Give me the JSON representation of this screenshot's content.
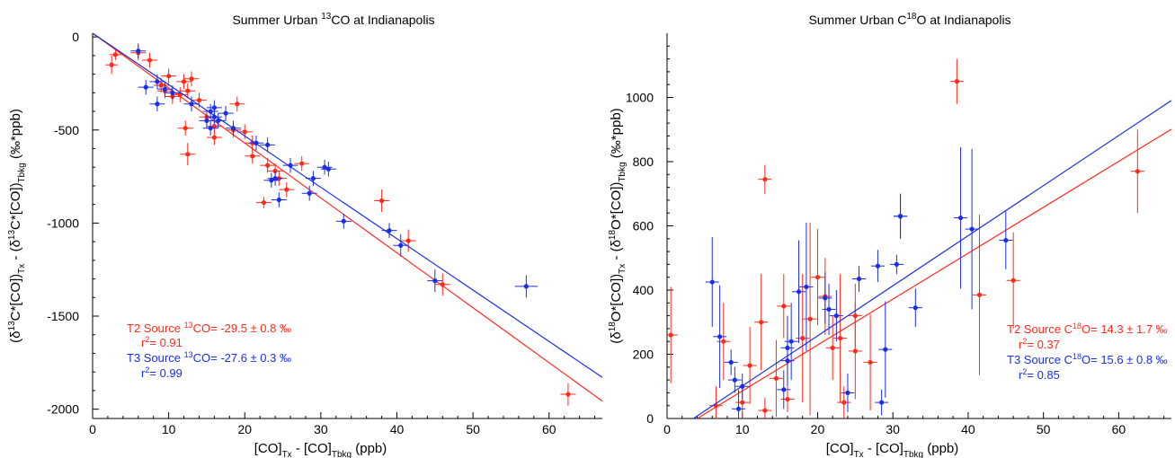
{
  "chart_data": [
    {
      "type": "scatter",
      "title": "Summer Urban <sup>13</sup>CO at Indianapolis",
      "xlabel": "[CO]<sub>Tx</sub> - [CO]<sub>Tbkg</sub> (ppb)",
      "ylabel": "(δ<sup>13</sup>C*[CO])<sub>Tx</sub> - (δ<sup>13</sup>C*[CO])<sub>Tbkg</sub> (‰*ppb)",
      "xlim": [
        0,
        67
      ],
      "ylim": [
        -2050,
        20
      ],
      "xticks": [
        0,
        10,
        20,
        30,
        40,
        50,
        60
      ],
      "yticks": [
        0,
        -500,
        -1000,
        -1500,
        -2000
      ],
      "colors": {
        "T2": "#ff2a1a",
        "T3": "#1a2ee6"
      },
      "series": [
        {
          "name": "T2",
          "color": "#ff2a1a",
          "fit": {
            "intercept": 20,
            "slope": -29.5,
            "x_end": 67
          },
          "points": [
            {
              "x": 2.5,
              "y": -150,
              "ex": 0.8,
              "ey": 50
            },
            {
              "x": 3.0,
              "y": -95,
              "ex": 0.8,
              "ey": 30
            },
            {
              "x": 6.0,
              "y": -85,
              "ex": 1.0,
              "ey": 40
            },
            {
              "x": 7.5,
              "y": -125,
              "ex": 1.0,
              "ey": 40
            },
            {
              "x": 9.0,
              "y": -260,
              "ex": 1.0,
              "ey": 40
            },
            {
              "x": 9.5,
              "y": -290,
              "ex": 1.0,
              "ey": 40
            },
            {
              "x": 10.0,
              "y": -210,
              "ex": 1.0,
              "ey": 40
            },
            {
              "x": 10.5,
              "y": -320,
              "ex": 1.0,
              "ey": 40
            },
            {
              "x": 11.5,
              "y": -310,
              "ex": 1.0,
              "ey": 40
            },
            {
              "x": 12.0,
              "y": -240,
              "ex": 1.0,
              "ey": 40
            },
            {
              "x": 12.5,
              "y": -290,
              "ex": 1.0,
              "ey": 40
            },
            {
              "x": 12.2,
              "y": -490,
              "ex": 1.0,
              "ey": 40
            },
            {
              "x": 12.5,
              "y": -630,
              "ex": 1.0,
              "ey": 60
            },
            {
              "x": 13.0,
              "y": -225,
              "ex": 1.0,
              "ey": 40
            },
            {
              "x": 14.0,
              "y": -340,
              "ex": 1.0,
              "ey": 40
            },
            {
              "x": 15.0,
              "y": -430,
              "ex": 1.0,
              "ey": 40
            },
            {
              "x": 16.0,
              "y": -480,
              "ex": 1.0,
              "ey": 40
            },
            {
              "x": 16.0,
              "y": -540,
              "ex": 1.0,
              "ey": 40
            },
            {
              "x": 18.5,
              "y": -500,
              "ex": 1.0,
              "ey": 40
            },
            {
              "x": 19.0,
              "y": -360,
              "ex": 1.0,
              "ey": 40
            },
            {
              "x": 20.0,
              "y": -510,
              "ex": 1.0,
              "ey": 40
            },
            {
              "x": 21.0,
              "y": -570,
              "ex": 1.0,
              "ey": 40
            },
            {
              "x": 21.0,
              "y": -640,
              "ex": 1.0,
              "ey": 40
            },
            {
              "x": 22.5,
              "y": -890,
              "ex": 1.0,
              "ey": 30
            },
            {
              "x": 23.0,
              "y": -690,
              "ex": 1.0,
              "ey": 40
            },
            {
              "x": 24.0,
              "y": -720,
              "ex": 1.0,
              "ey": 40
            },
            {
              "x": 24.5,
              "y": -760,
              "ex": 1.0,
              "ey": 40
            },
            {
              "x": 25.5,
              "y": -820,
              "ex": 1.0,
              "ey": 40
            },
            {
              "x": 27.5,
              "y": -680,
              "ex": 1.0,
              "ey": 40
            },
            {
              "x": 38.0,
              "y": -880,
              "ex": 1.0,
              "ey": 60
            },
            {
              "x": 41.5,
              "y": -1095,
              "ex": 1.0,
              "ey": 60
            },
            {
              "x": 46.0,
              "y": -1330,
              "ex": 1.0,
              "ey": 60
            },
            {
              "x": 62.5,
              "y": -1920,
              "ex": 1.0,
              "ey": 60
            }
          ]
        },
        {
          "name": "T3",
          "color": "#1a2ee6",
          "fit": {
            "intercept": 20,
            "slope": -27.6,
            "x_end": 67
          },
          "points": [
            {
              "x": 6.0,
              "y": -75,
              "ex": 1.0,
              "ey": 40
            },
            {
              "x": 7.0,
              "y": -270,
              "ex": 1.0,
              "ey": 40
            },
            {
              "x": 8.5,
              "y": -240,
              "ex": 1.0,
              "ey": 40
            },
            {
              "x": 8.5,
              "y": -360,
              "ex": 1.0,
              "ey": 40
            },
            {
              "x": 9.5,
              "y": -280,
              "ex": 1.0,
              "ey": 40
            },
            {
              "x": 10.5,
              "y": -300,
              "ex": 1.0,
              "ey": 40
            },
            {
              "x": 13.0,
              "y": -360,
              "ex": 1.0,
              "ey": 40
            },
            {
              "x": 15.0,
              "y": -450,
              "ex": 1.0,
              "ey": 40
            },
            {
              "x": 15.5,
              "y": -400,
              "ex": 1.0,
              "ey": 40
            },
            {
              "x": 15.5,
              "y": -490,
              "ex": 1.0,
              "ey": 40
            },
            {
              "x": 16.0,
              "y": -380,
              "ex": 1.0,
              "ey": 40
            },
            {
              "x": 16.0,
              "y": -430,
              "ex": 1.0,
              "ey": 40
            },
            {
              "x": 16.5,
              "y": -450,
              "ex": 1.0,
              "ey": 40
            },
            {
              "x": 17.5,
              "y": -410,
              "ex": 1.0,
              "ey": 40
            },
            {
              "x": 18.5,
              "y": -490,
              "ex": 1.0,
              "ey": 40
            },
            {
              "x": 21.5,
              "y": -570,
              "ex": 1.0,
              "ey": 40
            },
            {
              "x": 23.0,
              "y": -580,
              "ex": 1.0,
              "ey": 40
            },
            {
              "x": 23.5,
              "y": -770,
              "ex": 1.0,
              "ey": 40
            },
            {
              "x": 24.0,
              "y": -760,
              "ex": 1.0,
              "ey": 40
            },
            {
              "x": 24.5,
              "y": -875,
              "ex": 1.0,
              "ey": 40
            },
            {
              "x": 26.0,
              "y": -690,
              "ex": 1.0,
              "ey": 40
            },
            {
              "x": 28.5,
              "y": -840,
              "ex": 1.0,
              "ey": 40
            },
            {
              "x": 29.0,
              "y": -760,
              "ex": 1.0,
              "ey": 40
            },
            {
              "x": 30.5,
              "y": -700,
              "ex": 1.0,
              "ey": 40
            },
            {
              "x": 31.0,
              "y": -710,
              "ex": 1.0,
              "ey": 40
            },
            {
              "x": 33.0,
              "y": -990,
              "ex": 1.0,
              "ey": 40
            },
            {
              "x": 39.0,
              "y": -1040,
              "ex": 1.0,
              "ey": 40
            },
            {
              "x": 40.5,
              "y": -1120,
              "ex": 1.0,
              "ey": 60
            },
            {
              "x": 45.0,
              "y": -1310,
              "ex": 1.0,
              "ey": 60
            },
            {
              "x": 57.0,
              "y": -1340,
              "ex": 1.5,
              "ey": 60
            }
          ]
        }
      ],
      "annotations": {
        "t2_line1": "T2 Source <sup>13</sup>CO=  -29.5 ± 0.8 ‰",
        "t2_line2": "r<sup>2</sup>=  0.91",
        "t3_line1": "T3 Source <sup>13</sup>CO=  -27.6 ± 0.3 ‰",
        "t3_line2": "r<sup>2</sup>=  0.99"
      }
    },
    {
      "type": "scatter",
      "title": "Summer Urban C<sup>18</sup>O at Indianapolis",
      "xlabel": "[CO]<sub>Tx</sub> - [CO]<sub>Tbkg</sub> (ppb)",
      "ylabel": "(δ<sup>18</sup>O*[CO])<sub>Tx</sub> - (δ<sup>18</sup>O*[CO])<sub>Tbkg</sub> (‰*ppb)",
      "xlim": [
        0,
        67
      ],
      "ylim": [
        0,
        1200
      ],
      "xticks": [
        0,
        10,
        20,
        30,
        40,
        50,
        60
      ],
      "yticks": [
        0,
        200,
        400,
        600,
        800,
        1000
      ],
      "colors": {
        "T2": "#ff2a1a",
        "T3": "#1a2ee6"
      },
      "series": [
        {
          "name": "T2",
          "color": "#ff2a1a",
          "fit": {
            "x0": 4.0,
            "slope": 14.3,
            "x_end": 67
          },
          "points": [
            {
              "x": 0.5,
              "y": 260,
              "ey": 150
            },
            {
              "x": 6.5,
              "y": 40,
              "ey": 60
            },
            {
              "x": 7.5,
              "y": 240,
              "ey": 120
            },
            {
              "x": 10.0,
              "y": 50,
              "ey": 60
            },
            {
              "x": 11.0,
              "y": 165,
              "ey": 120
            },
            {
              "x": 12.5,
              "y": 300,
              "ey": 150
            },
            {
              "x": 13.0,
              "y": 745,
              "ey": 45
            },
            {
              "x": 13.0,
              "y": 25,
              "ey": 40
            },
            {
              "x": 14.5,
              "y": 125,
              "ey": 120
            },
            {
              "x": 15.5,
              "y": 350,
              "ey": 100
            },
            {
              "x": 16.0,
              "y": 60,
              "ey": 40
            },
            {
              "x": 18.0,
              "y": 250,
              "ey": 200
            },
            {
              "x": 19.0,
              "y": 310,
              "ey": 300
            },
            {
              "x": 20.0,
              "y": 440,
              "ey": 150
            },
            {
              "x": 21.0,
              "y": 380,
              "ey": 120
            },
            {
              "x": 22.0,
              "y": 220,
              "ey": 100
            },
            {
              "x": 23.0,
              "y": 250,
              "ey": 200
            },
            {
              "x": 23.5,
              "y": 50,
              "ey": 50
            },
            {
              "x": 25.0,
              "y": 210,
              "ey": 150
            },
            {
              "x": 25.0,
              "y": 320,
              "ey": 100
            },
            {
              "x": 27.0,
              "y": 175,
              "ey": 150
            },
            {
              "x": 38.5,
              "y": 1050,
              "ey": 70
            },
            {
              "x": 41.5,
              "y": 385,
              "ey": 250
            },
            {
              "x": 46.0,
              "y": 430,
              "ey": 150
            },
            {
              "x": 62.5,
              "y": 770,
              "ey": 130
            }
          ]
        },
        {
          "name": "T3",
          "color": "#1a2ee6",
          "fit": {
            "x0": 3.5,
            "slope": 15.6,
            "x_end": 67
          },
          "points": [
            {
              "x": 6.0,
              "y": 425,
              "ey": 140
            },
            {
              "x": 7.0,
              "y": 255,
              "ey": 160
            },
            {
              "x": 8.5,
              "y": 175,
              "ey": 40
            },
            {
              "x": 9.0,
              "y": 120,
              "ey": 40
            },
            {
              "x": 9.5,
              "y": 30,
              "ey": 60
            },
            {
              "x": 10.0,
              "y": 100,
              "ey": 40
            },
            {
              "x": 15.5,
              "y": 90,
              "ey": 60
            },
            {
              "x": 16.0,
              "y": 180,
              "ey": 80
            },
            {
              "x": 16.0,
              "y": 220,
              "ey": 100
            },
            {
              "x": 16.5,
              "y": 240,
              "ey": 120
            },
            {
              "x": 17.5,
              "y": 395,
              "ey": 160
            },
            {
              "x": 18.5,
              "y": 410,
              "ey": 200
            },
            {
              "x": 21.0,
              "y": 375,
              "ey": 80
            },
            {
              "x": 21.5,
              "y": 340,
              "ey": 80
            },
            {
              "x": 22.5,
              "y": 320,
              "ey": 80
            },
            {
              "x": 24.0,
              "y": 80,
              "ey": 60
            },
            {
              "x": 25.5,
              "y": 435,
              "ey": 40
            },
            {
              "x": 28.0,
              "y": 475,
              "ey": 50
            },
            {
              "x": 28.5,
              "y": 50,
              "ey": 40
            },
            {
              "x": 29.0,
              "y": 215,
              "ey": 150
            },
            {
              "x": 30.5,
              "y": 480,
              "ey": 30
            },
            {
              "x": 31.0,
              "y": 630,
              "ey": 70
            },
            {
              "x": 31.0,
              "y": 630,
              "ey": 70
            },
            {
              "x": 33.0,
              "y": 345,
              "ey": 60
            },
            {
              "x": 39.0,
              "y": 625,
              "ey": 220
            },
            {
              "x": 40.5,
              "y": 590,
              "ey": 250
            },
            {
              "x": 45.0,
              "y": 555,
              "ey": 90
            }
          ]
        }
      ],
      "annotations": {
        "t2_line1": "T2 Source C<sup>18</sup>O=  14.3 ± 1.7 ‰",
        "t2_line2": "r<sup>2</sup>=  0.37",
        "t3_line1": "T3 Source C<sup>18</sup>O=  15.6 ± 0.8 ‰",
        "t3_line2": "r<sup>2</sup>=  0.85"
      }
    }
  ]
}
